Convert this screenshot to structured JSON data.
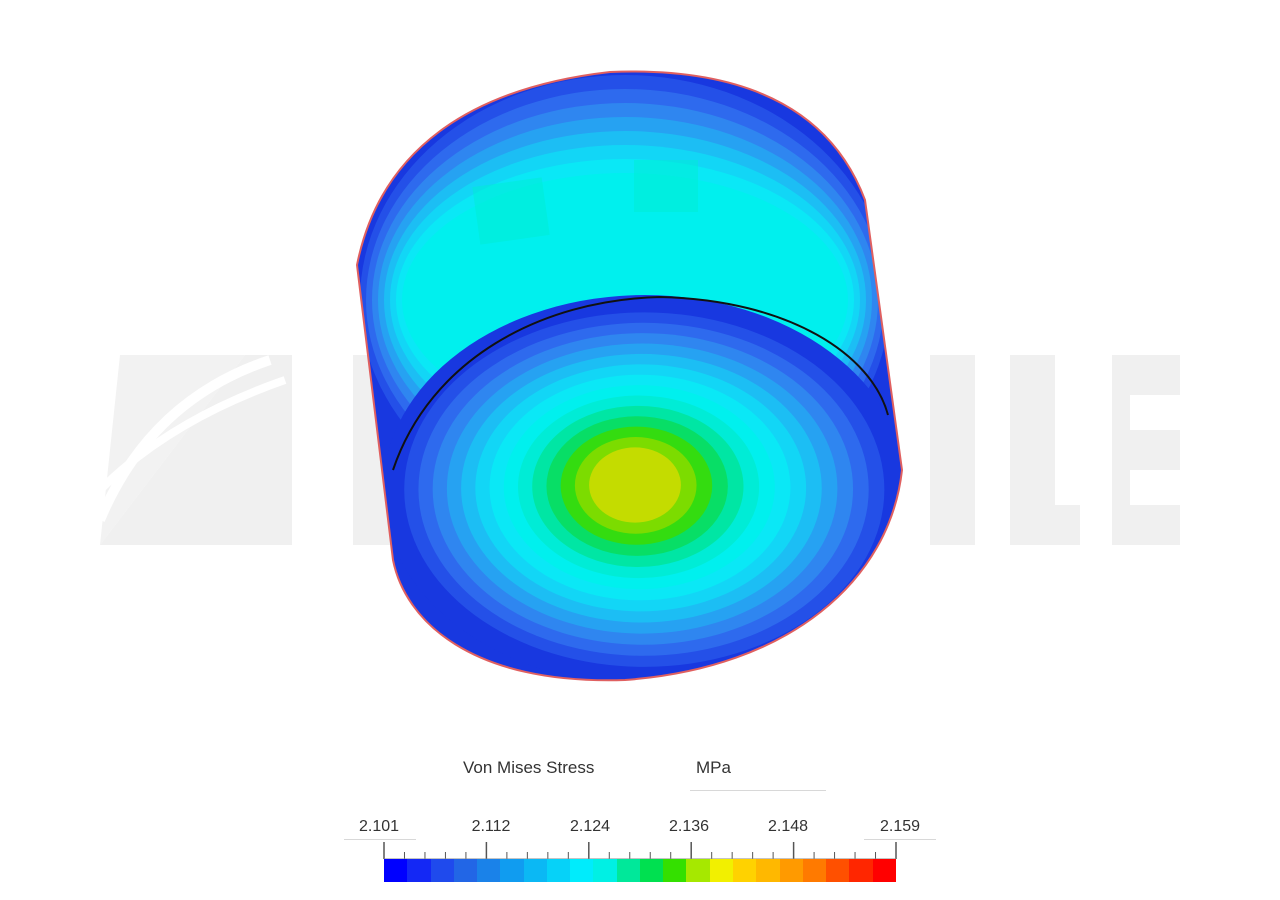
{
  "legend": {
    "quantity": "Von Mises Stress",
    "unit": "MPa",
    "ticks": [
      "2.101",
      "2.112",
      "2.124",
      "2.136",
      "2.148",
      "2.159"
    ],
    "min": 2.101,
    "max": 2.159,
    "colors": [
      "#0000ff",
      "#1428f5",
      "#1f4aed",
      "#2266e6",
      "#1a82e9",
      "#109cf0",
      "#0bb8f4",
      "#06d2f8",
      "#00ecfc",
      "#00f0e4",
      "#00e89a",
      "#00e050",
      "#34e000",
      "#a6e800",
      "#f2f000",
      "#ffd200",
      "#ffb800",
      "#ff9a00",
      "#ff7a00",
      "#ff5000",
      "#ff2600",
      "#ff0000"
    ]
  },
  "model": {
    "palette": [
      "#1838e0",
      "#2450e8",
      "#2e6aee",
      "#2f86f0",
      "#26a2f2",
      "#1cbef4",
      "#12d6f6",
      "#0ae8f6",
      "#00f0ee",
      "#00ecd6",
      "#00e6a4",
      "#08de66",
      "#34dc10",
      "#7cdc00",
      "#c4dc00"
    ],
    "outline_color": "#e06060",
    "edge_color": "#111111"
  },
  "watermark": {
    "color": "#f0f0f0"
  }
}
